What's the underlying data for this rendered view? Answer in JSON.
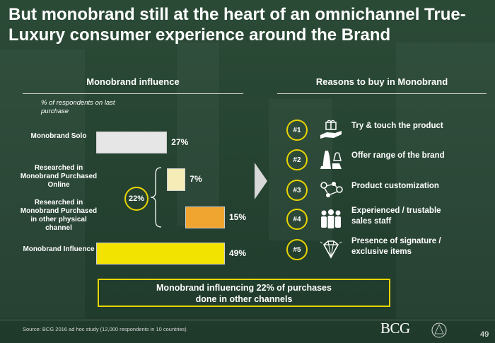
{
  "title": "But monobrand still at the heart of an omnichannel True-Luxury consumer experience around the Brand",
  "left_section": {
    "heading": "Monobrand influence",
    "respondents_note": "% of respondents on last purchase"
  },
  "chart_data": {
    "type": "bar",
    "orientation": "horizontal",
    "categories": [
      "Monobrand Solo",
      "Researched in Monobrand Purchased Online",
      "Researched in Monobrand Purchased in other physical channel",
      "Monobrand Influence"
    ],
    "values": [
      27,
      7,
      15,
      49
    ],
    "value_labels": [
      "27%",
      "7%",
      "15%",
      "49%"
    ],
    "stacking": "waterfall",
    "bar_colors": [
      "#e6e6e6",
      "#f5ecb8",
      "#f0a531",
      "#f2e300"
    ],
    "group_annotation": {
      "label": "22%",
      "covers": [
        "Researched in Monobrand Purchased Online",
        "Researched in Monobrand Purchased in other physical channel"
      ]
    },
    "title": "",
    "xlabel": "",
    "ylabel": "",
    "xlim": [
      0,
      49
    ],
    "grid": false,
    "legend": "none"
  },
  "right_section": {
    "heading": "Reasons to buy in Monobrand",
    "reasons": [
      {
        "rank": "#1",
        "icon": "gift-hand-icon",
        "text": "Try & touch the product"
      },
      {
        "rank": "#2",
        "icon": "fashion-items-icon",
        "text": "Offer range of the brand"
      },
      {
        "rank": "#3",
        "icon": "customization-nodes-icon",
        "text": "Product customization"
      },
      {
        "rank": "#4",
        "icon": "staff-group-icon",
        "text": "Experienced / trustable\n sales staff"
      },
      {
        "rank": "#5",
        "icon": "diamond-icon",
        "text": "Presence of signature /\nexclusive items"
      }
    ]
  },
  "callout": "Monobrand influencing 22% of purchases\ndone in other channels",
  "footer": {
    "source": "Source: BCG 2016 ad hoc study (12,000 respondents in 10 countries)",
    "logo_bcg": "BCG",
    "logo_altagamma": "Fondazione Altagamma",
    "page_number": "49"
  },
  "colors": {
    "accent": "#e8d400",
    "background": "#254231"
  }
}
